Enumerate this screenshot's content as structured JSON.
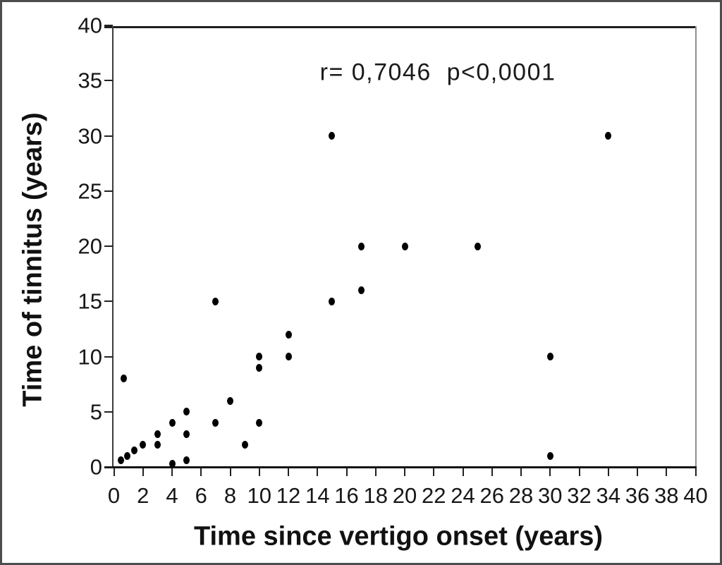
{
  "figure": {
    "annotation": "r= 0,7046  p<0,0001"
  },
  "colors": {
    "background": "#ffffff",
    "frame_border": "#4d4d4d",
    "axis": "#222222",
    "marker": "#000000",
    "text": "#111111"
  },
  "chart_data": {
    "type": "scatter",
    "title": "",
    "xlabel": "Time since vertigo onset (years)",
    "ylabel": "Time of tinnitus (years)",
    "xlim": [
      0,
      40
    ],
    "ylim": [
      0,
      40
    ],
    "x_ticks": [
      0,
      2,
      4,
      6,
      8,
      10,
      12,
      14,
      16,
      18,
      20,
      22,
      24,
      26,
      28,
      30,
      32,
      34,
      36,
      38,
      40
    ],
    "y_ticks": [
      0,
      5,
      10,
      15,
      20,
      25,
      30,
      35,
      40
    ],
    "grid": false,
    "legend": false,
    "annotation": "r= 0,7046  p<0,0001",
    "marker": {
      "shape": "ellipse",
      "color": "#000000"
    },
    "points": [
      [
        0.5,
        0.6
      ],
      [
        0.9,
        1
      ],
      [
        1.4,
        1.5
      ],
      [
        2,
        2
      ],
      [
        3,
        2
      ],
      [
        3,
        3
      ],
      [
        4,
        0.3
      ],
      [
        4,
        4
      ],
      [
        0.7,
        8
      ],
      [
        5,
        0.6
      ],
      [
        5,
        3
      ],
      [
        5,
        5
      ],
      [
        7,
        4
      ],
      [
        7,
        15
      ],
      [
        8,
        6
      ],
      [
        9,
        2
      ],
      [
        10,
        4
      ],
      [
        10,
        9
      ],
      [
        10,
        10
      ],
      [
        12,
        10
      ],
      [
        12,
        12
      ],
      [
        15,
        15
      ],
      [
        15,
        30
      ],
      [
        17,
        16
      ],
      [
        17,
        20
      ],
      [
        20,
        20
      ],
      [
        25,
        20
      ],
      [
        30,
        1
      ],
      [
        30,
        10
      ],
      [
        34,
        30
      ]
    ]
  }
}
